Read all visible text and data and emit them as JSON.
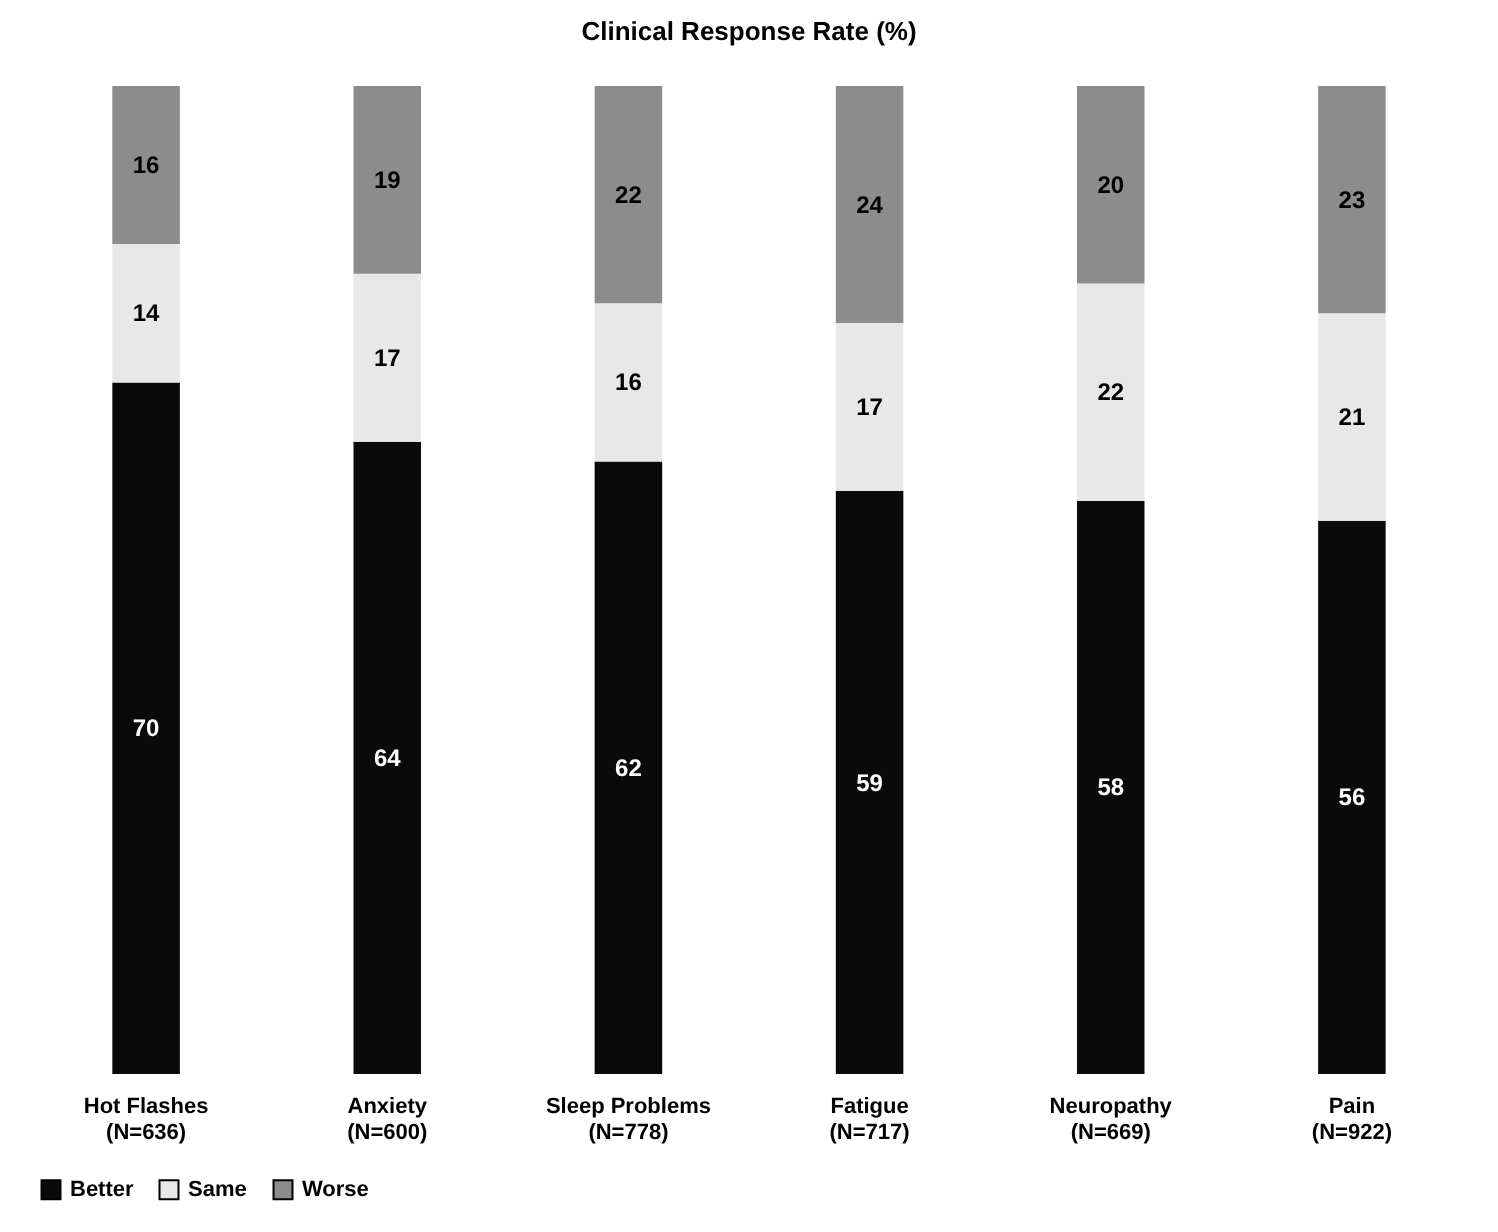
{
  "chart_data": {
    "type": "bar",
    "title": "Clinical Response Rate (%)",
    "stacked": true,
    "data_labels": true,
    "legend": "bottom",
    "tick_labels": "x",
    "ylim": [
      0,
      100
    ],
    "categories": [
      "Hot Flashes\n(N=636)",
      "Anxiety\n(N=600)",
      "Sleep Problems\n(N=778)",
      "Fatigue\n(N=717)",
      "Neuropathy\n(N=669)",
      "Pain\n(N=922)"
    ],
    "series": [
      {
        "name": "Better",
        "color": "#0a0a0a",
        "values": [
          70,
          64,
          62,
          59,
          58,
          56
        ]
      },
      {
        "name": "Same",
        "color": "#e8e8e8",
        "values": [
          14,
          17,
          16,
          17,
          22,
          21
        ]
      },
      {
        "name": "Worse",
        "color": "#8c8c8c",
        "values": [
          16,
          19,
          22,
          24,
          20,
          23
        ]
      }
    ]
  }
}
